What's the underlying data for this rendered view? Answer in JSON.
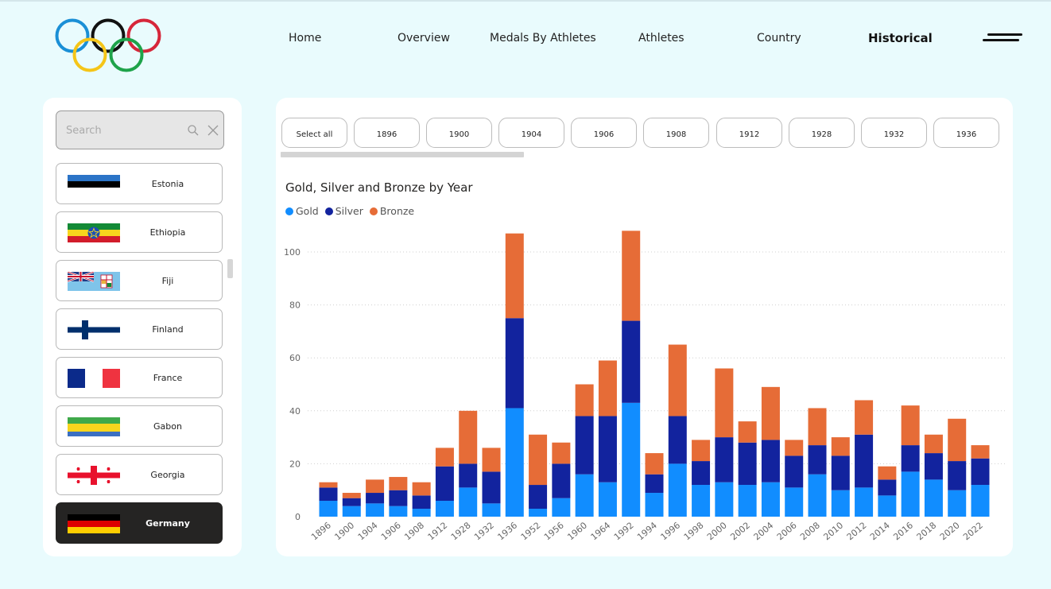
{
  "nav": {
    "items": [
      "Home",
      "Overview",
      "Medals By Athletes",
      "Athletes",
      "Country",
      "Historical"
    ],
    "active": "Historical"
  },
  "colors": {
    "gold": "#118DFF",
    "silver": "#12239E",
    "bronze": "#E66C37",
    "selected_bg": "#252423",
    "background": "#E9FBFD"
  },
  "icons": {
    "logo": "olympic-rings-icon",
    "menu": "hamburger-menu-icon",
    "search": "search-icon",
    "clear": "clear-icon"
  },
  "slicer": {
    "search_placeholder": "Search",
    "countries": [
      {
        "name": "Estonia",
        "flag": "estonia-flag"
      },
      {
        "name": "Ethiopia",
        "flag": "ethiopia-flag"
      },
      {
        "name": "Fiji",
        "flag": "fiji-flag"
      },
      {
        "name": "Finland",
        "flag": "finland-flag"
      },
      {
        "name": "France",
        "flag": "france-flag"
      },
      {
        "name": "Gabon",
        "flag": "gabon-flag"
      },
      {
        "name": "Georgia",
        "flag": "georgia-flag"
      },
      {
        "name": "Germany",
        "flag": "germany-flag"
      }
    ],
    "selected": "Germany"
  },
  "year_filter": {
    "buttons": [
      "Select all",
      "1896",
      "1900",
      "1904",
      "1906",
      "1908",
      "1912",
      "1928",
      "1932",
      "1936"
    ]
  },
  "chart_data": {
    "type": "bar",
    "stacked": true,
    "title": "Gold, Silver and Bronze by Year",
    "categories": [
      "1896",
      "1900",
      "1904",
      "1906",
      "1908",
      "1912",
      "1928",
      "1932",
      "1936",
      "1952",
      "1956",
      "1960",
      "1964",
      "1992",
      "1994",
      "1996",
      "1998",
      "2000",
      "2002",
      "2004",
      "2006",
      "2008",
      "2010",
      "2012",
      "2014",
      "2016",
      "2018",
      "2020",
      "2022"
    ],
    "series": [
      {
        "name": "Gold",
        "values": [
          6,
          4,
          5,
          4,
          3,
          6,
          11,
          5,
          41,
          3,
          7,
          16,
          13,
          43,
          9,
          20,
          12,
          13,
          12,
          13,
          11,
          16,
          10,
          11,
          8,
          17,
          14,
          10,
          12
        ]
      },
      {
        "name": "Silver",
        "values": [
          5,
          3,
          4,
          6,
          5,
          13,
          9,
          12,
          34,
          9,
          13,
          22,
          25,
          31,
          7,
          18,
          9,
          17,
          16,
          16,
          12,
          11,
          13,
          20,
          6,
          10,
          10,
          11,
          10
        ]
      },
      {
        "name": "Bronze",
        "values": [
          2,
          2,
          5,
          5,
          5,
          7,
          20,
          9,
          32,
          19,
          8,
          12,
          21,
          34,
          8,
          27,
          8,
          26,
          8,
          20,
          6,
          14,
          7,
          13,
          5,
          15,
          7,
          16,
          5
        ]
      }
    ],
    "yticks": [
      0,
      20,
      40,
      60,
      80,
      100
    ],
    "ylim": [
      0,
      110
    ],
    "grid": true,
    "legend_position": "top-left"
  }
}
